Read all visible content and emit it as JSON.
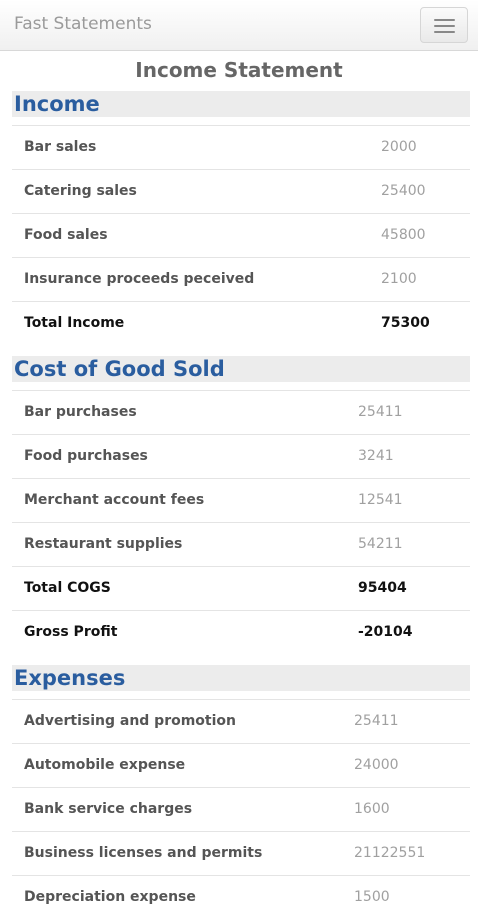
{
  "app": {
    "brand": "Fast Statements"
  },
  "page": {
    "title": "Income Statement"
  },
  "income": {
    "header": "Income",
    "rows": [
      {
        "label": "Bar sales",
        "value": "2000"
      },
      {
        "label": "Catering sales",
        "value": "25400"
      },
      {
        "label": "Food sales",
        "value": "45800"
      },
      {
        "label": "Insurance proceeds peceived",
        "value": "2100"
      },
      {
        "label": "Total Income",
        "value": "75300"
      }
    ]
  },
  "cogs": {
    "header": "Cost of Good Sold",
    "rows": [
      {
        "label": "Bar purchases",
        "value": "25411"
      },
      {
        "label": "Food purchases",
        "value": "3241"
      },
      {
        "label": "Merchant account fees",
        "value": "12541"
      },
      {
        "label": "Restaurant supplies",
        "value": "54211"
      },
      {
        "label": "Total COGS",
        "value": "95404"
      },
      {
        "label": "Gross Profit",
        "value": "-20104"
      }
    ]
  },
  "expenses": {
    "header": "Expenses",
    "rows": [
      {
        "label": "Advertising and promotion",
        "value": "25411"
      },
      {
        "label": "Automobile expense",
        "value": "24000"
      },
      {
        "label": "Bank service charges",
        "value": "1600"
      },
      {
        "label": "Business licenses and permits",
        "value": "21122551"
      },
      {
        "label": "Depreciation expense",
        "value": "1500"
      }
    ]
  }
}
